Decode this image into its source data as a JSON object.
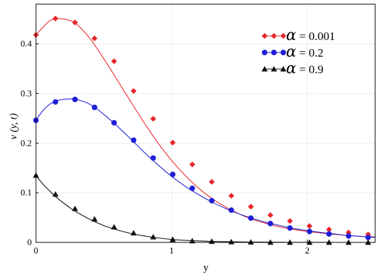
{
  "chart_data": {
    "type": "line",
    "xlabel": "y",
    "ylabel": "v (y, t)",
    "xlim": [
      0,
      2.5
    ],
    "ylim": [
      0,
      0.48
    ],
    "x_ticks": [
      0,
      1,
      2
    ],
    "y_ticks": [
      0,
      0.1,
      0.2,
      0.3,
      0.4
    ],
    "x_tick_labels": [
      "0",
      "1",
      "2"
    ],
    "y_tick_labels": [
      "0",
      "0.1",
      "0.2",
      "0.3",
      "0.4"
    ],
    "grid": true,
    "legend_position": "top-right",
    "series": [
      {
        "name": "α = 0.001",
        "legend_symbol": "α",
        "legend_value": "= 0.001",
        "color": "#e8262a",
        "marker": "diamond",
        "x": [
          0,
          0.05,
          0.1,
          0.15,
          0.2,
          0.25,
          0.3,
          0.4,
          0.5,
          0.6,
          0.7,
          0.8,
          0.9,
          1.0,
          1.1,
          1.2,
          1.3,
          1.4,
          1.5,
          1.6,
          1.7,
          1.8,
          1.9,
          2.0,
          2.1,
          2.2,
          2.3,
          2.4,
          2.5
        ],
        "values": [
          0.418,
          0.433,
          0.446,
          0.451,
          0.45,
          0.447,
          0.44,
          0.41,
          0.37,
          0.327,
          0.283,
          0.24,
          0.2,
          0.165,
          0.135,
          0.109,
          0.088,
          0.071,
          0.057,
          0.046,
          0.038,
          0.031,
          0.026,
          0.022,
          0.019,
          0.016,
          0.014,
          0.012,
          0.011
        ],
        "marker_x": [
          0,
          0.144,
          0.288,
          0.432,
          0.576,
          0.72,
          0.864,
          1.008,
          1.152,
          1.296,
          1.44,
          1.584,
          1.728,
          1.872,
          2.016,
          2.16,
          2.304,
          2.448
        ],
        "marker_values": [
          0.418,
          0.451,
          0.443,
          0.411,
          0.365,
          0.305,
          0.249,
          0.201,
          0.157,
          0.122,
          0.094,
          0.072,
          0.055,
          0.043,
          0.033,
          0.026,
          0.02,
          0.016
        ]
      },
      {
        "name": "α = 0.2",
        "legend_symbol": "α",
        "legend_value": "= 0.2",
        "color": "#1f1fd8",
        "marker": "circle",
        "x": [
          0,
          0.05,
          0.1,
          0.15,
          0.2,
          0.25,
          0.3,
          0.4,
          0.5,
          0.6,
          0.7,
          0.8,
          0.9,
          1.0,
          1.1,
          1.2,
          1.3,
          1.4,
          1.5,
          1.6,
          1.7,
          1.8,
          1.9,
          2.0,
          2.1,
          2.2,
          2.3,
          2.4,
          2.5
        ],
        "values": [
          0.246,
          0.265,
          0.278,
          0.285,
          0.288,
          0.289,
          0.288,
          0.278,
          0.258,
          0.234,
          0.208,
          0.181,
          0.156,
          0.133,
          0.113,
          0.096,
          0.081,
          0.068,
          0.057,
          0.048,
          0.04,
          0.034,
          0.028,
          0.024,
          0.02,
          0.017,
          0.014,
          0.012,
          0.01
        ],
        "marker_x": [
          0,
          0.144,
          0.288,
          0.432,
          0.576,
          0.72,
          0.864,
          1.008,
          1.152,
          1.296,
          1.44,
          1.584,
          1.728,
          1.872,
          2.016,
          2.16,
          2.304,
          2.448
        ],
        "marker_values": [
          0.246,
          0.283,
          0.288,
          0.272,
          0.241,
          0.206,
          0.17,
          0.137,
          0.109,
          0.084,
          0.065,
          0.049,
          0.038,
          0.029,
          0.022,
          0.017,
          0.013,
          0.01
        ]
      },
      {
        "name": "α = 0.9",
        "legend_symbol": "α",
        "legend_value": "= 0.9",
        "color": "#111111",
        "marker": "triangle",
        "x": [
          0,
          0.05,
          0.1,
          0.15,
          0.2,
          0.25,
          0.3,
          0.4,
          0.5,
          0.6,
          0.7,
          0.8,
          0.9,
          1.0,
          1.1,
          1.2,
          1.3,
          1.4,
          1.5,
          1.6,
          1.7,
          1.8,
          1.9,
          2.0,
          2.1,
          2.2,
          2.3,
          2.4,
          2.5
        ],
        "values": [
          0.135,
          0.118,
          0.104,
          0.091,
          0.08,
          0.07,
          0.061,
          0.046,
          0.034,
          0.025,
          0.018,
          0.013,
          0.009,
          0.006,
          0.004,
          0.003,
          0.002,
          0.0015,
          0.001,
          0.0007,
          0.0005,
          0.0003,
          0.0002,
          0.0001,
          0.0001,
          0.0,
          0.0,
          0.0,
          0.0
        ],
        "marker_x": [
          0,
          0.144,
          0.288,
          0.432,
          0.576,
          0.72,
          0.864,
          1.008,
          1.152,
          1.296,
          1.44,
          1.584,
          1.728,
          1.872,
          2.016,
          2.16,
          2.304,
          2.448
        ],
        "marker_values": [
          0.135,
          0.097,
          0.068,
          0.047,
          0.031,
          0.019,
          0.011,
          0.006,
          0.003,
          0.002,
          0.001,
          0.0005,
          0.0002,
          0.0001,
          0.0,
          0.0,
          0.0,
          0.0
        ]
      }
    ]
  }
}
